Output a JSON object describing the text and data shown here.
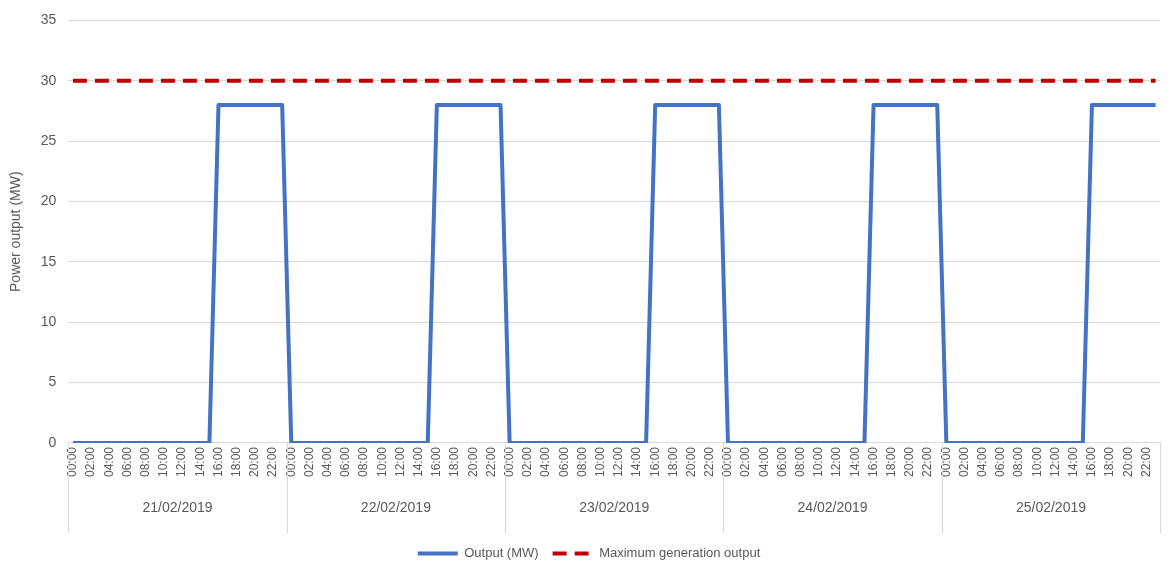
{
  "chart_data": {
    "type": "line",
    "ylabel": "Power output (MW)",
    "ylim": [
      0,
      35
    ],
    "yticks": [
      0,
      5,
      10,
      15,
      20,
      25,
      30,
      35
    ],
    "grid": "y",
    "legend": "bottom",
    "marker": "none",
    "categories": [
      "00:00",
      null,
      "02:00",
      null,
      "04:00",
      null,
      "06:00",
      null,
      "08:00",
      null,
      "10:00",
      null,
      "12:00",
      null,
      "14:00",
      null,
      "16:00",
      null,
      "18:00",
      null,
      "20:00",
      null,
      "22:00",
      null,
      "00:00",
      null,
      "02:00",
      null,
      "04:00",
      null,
      "06:00",
      null,
      "08:00",
      null,
      "10:00",
      null,
      "12:00",
      null,
      "14:00",
      null,
      "16:00",
      null,
      "18:00",
      null,
      "20:00",
      null,
      "22:00",
      null,
      "00:00",
      null,
      "02:00",
      null,
      "04:00",
      null,
      "06:00",
      null,
      "08:00",
      null,
      "10:00",
      null,
      "12:00",
      null,
      "14:00",
      null,
      "16:00",
      null,
      "18:00",
      null,
      "20:00",
      null,
      "22:00",
      null,
      "00:00",
      null,
      "02:00",
      null,
      "04:00",
      null,
      "06:00",
      null,
      "08:00",
      null,
      "10:00",
      null,
      "12:00",
      null,
      "14:00",
      null,
      "16:00",
      null,
      "18:00",
      null,
      "20:00",
      null,
      "22:00",
      null,
      "00:00",
      null,
      "02:00",
      null,
      "04:00",
      null,
      "06:00",
      null,
      "08:00",
      null,
      "10:00",
      null,
      "12:00",
      null,
      "14:00",
      null,
      "16:00",
      null,
      "18:00",
      null,
      "20:00",
      null,
      "22:00",
      null
    ],
    "series": [
      {
        "name": "Output (MW)",
        "color": "#4472c4",
        "line_style": "solid",
        "values": [
          0,
          0,
          0,
          0,
          0,
          0,
          0,
          0,
          0,
          0,
          0,
          0,
          0,
          0,
          0,
          0,
          28,
          28,
          28,
          28,
          28,
          28,
          28,
          28,
          0,
          0,
          0,
          0,
          0,
          0,
          0,
          0,
          0,
          0,
          0,
          0,
          0,
          0,
          0,
          0,
          28,
          28,
          28,
          28,
          28,
          28,
          28,
          28,
          0,
          0,
          0,
          0,
          0,
          0,
          0,
          0,
          0,
          0,
          0,
          0,
          0,
          0,
          0,
          0,
          28,
          28,
          28,
          28,
          28,
          28,
          28,
          28,
          0,
          0,
          0,
          0,
          0,
          0,
          0,
          0,
          0,
          0,
          0,
          0,
          0,
          0,
          0,
          0,
          28,
          28,
          28,
          28,
          28,
          28,
          28,
          28,
          0,
          0,
          0,
          0,
          0,
          0,
          0,
          0,
          0,
          0,
          0,
          0,
          0,
          0,
          0,
          0,
          28,
          28,
          28,
          28,
          28,
          28,
          28,
          28
        ]
      },
      {
        "name": "Maximum generation output",
        "color": "#c00000",
        "line_style": "dashed",
        "values": [
          30,
          30,
          30,
          30,
          30,
          30,
          30,
          30,
          30,
          30,
          30,
          30,
          30,
          30,
          30,
          30,
          30,
          30,
          30,
          30,
          30,
          30,
          30,
          30,
          30,
          30,
          30,
          30,
          30,
          30,
          30,
          30,
          30,
          30,
          30,
          30,
          30,
          30,
          30,
          30,
          30,
          30,
          30,
          30,
          30,
          30,
          30,
          30,
          30,
          30,
          30,
          30,
          30,
          30,
          30,
          30,
          30,
          30,
          30,
          30,
          30,
          30,
          30,
          30,
          30,
          30,
          30,
          30,
          30,
          30,
          30,
          30,
          30,
          30,
          30,
          30,
          30,
          30,
          30,
          30,
          30,
          30,
          30,
          30,
          30,
          30,
          30,
          30,
          30,
          30,
          30,
          30,
          30,
          30,
          30,
          30,
          30,
          30,
          30,
          30,
          30,
          30,
          30,
          30,
          30,
          30,
          30,
          30,
          30,
          30,
          30,
          30,
          30,
          30,
          30,
          30,
          30,
          30,
          30,
          30
        ]
      }
    ],
    "annotations": [
      "21/02/2019",
      "22/02/2019",
      "23/02/2019",
      "24/02/2019",
      "25/02/2019"
    ]
  }
}
